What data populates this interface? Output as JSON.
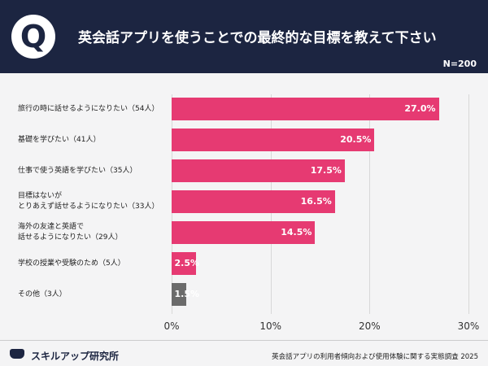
{
  "header": {
    "logo": "Q",
    "title": "英会話アプリを使うことでの最終的な目標を教えて下さい",
    "note": "N=200"
  },
  "chart_data": {
    "type": "bar",
    "orientation": "horizontal",
    "categories": [
      "旅行の時に話せるようになりたい（54人）",
      "基礎を学びたい（41人）",
      "仕事で使う英語を学びたい（35人）",
      "目標はないが\nとりあえず話せるようになりたい（33人）",
      "海外の友達と英語で\n話せるようになりたい（29人）",
      "学校の授業や受験のため（5人）",
      "その他（3人）"
    ],
    "values": [
      27.0,
      20.5,
      17.5,
      16.5,
      14.5,
      2.5,
      1.5
    ],
    "value_labels": [
      "27.0%",
      "20.5%",
      "17.5%",
      "16.5%",
      "14.5%",
      "2.5%",
      "1.5%"
    ],
    "colors": [
      "#e63a72",
      "#e63a72",
      "#e63a72",
      "#e63a72",
      "#e63a72",
      "#e63a72",
      "#6b6b6b"
    ],
    "xlim": [
      0,
      30
    ],
    "xticks": [
      {
        "value": 0,
        "label": "0%"
      },
      {
        "value": 10,
        "label": "10%"
      },
      {
        "value": 20,
        "label": "20%"
      },
      {
        "value": 30,
        "label": "30%"
      }
    ],
    "grid": true
  },
  "footer": {
    "brand": "スキルアップ研究所",
    "source": "英会話アプリの利用者傾向および使用体験に関する実態調査 2025"
  }
}
